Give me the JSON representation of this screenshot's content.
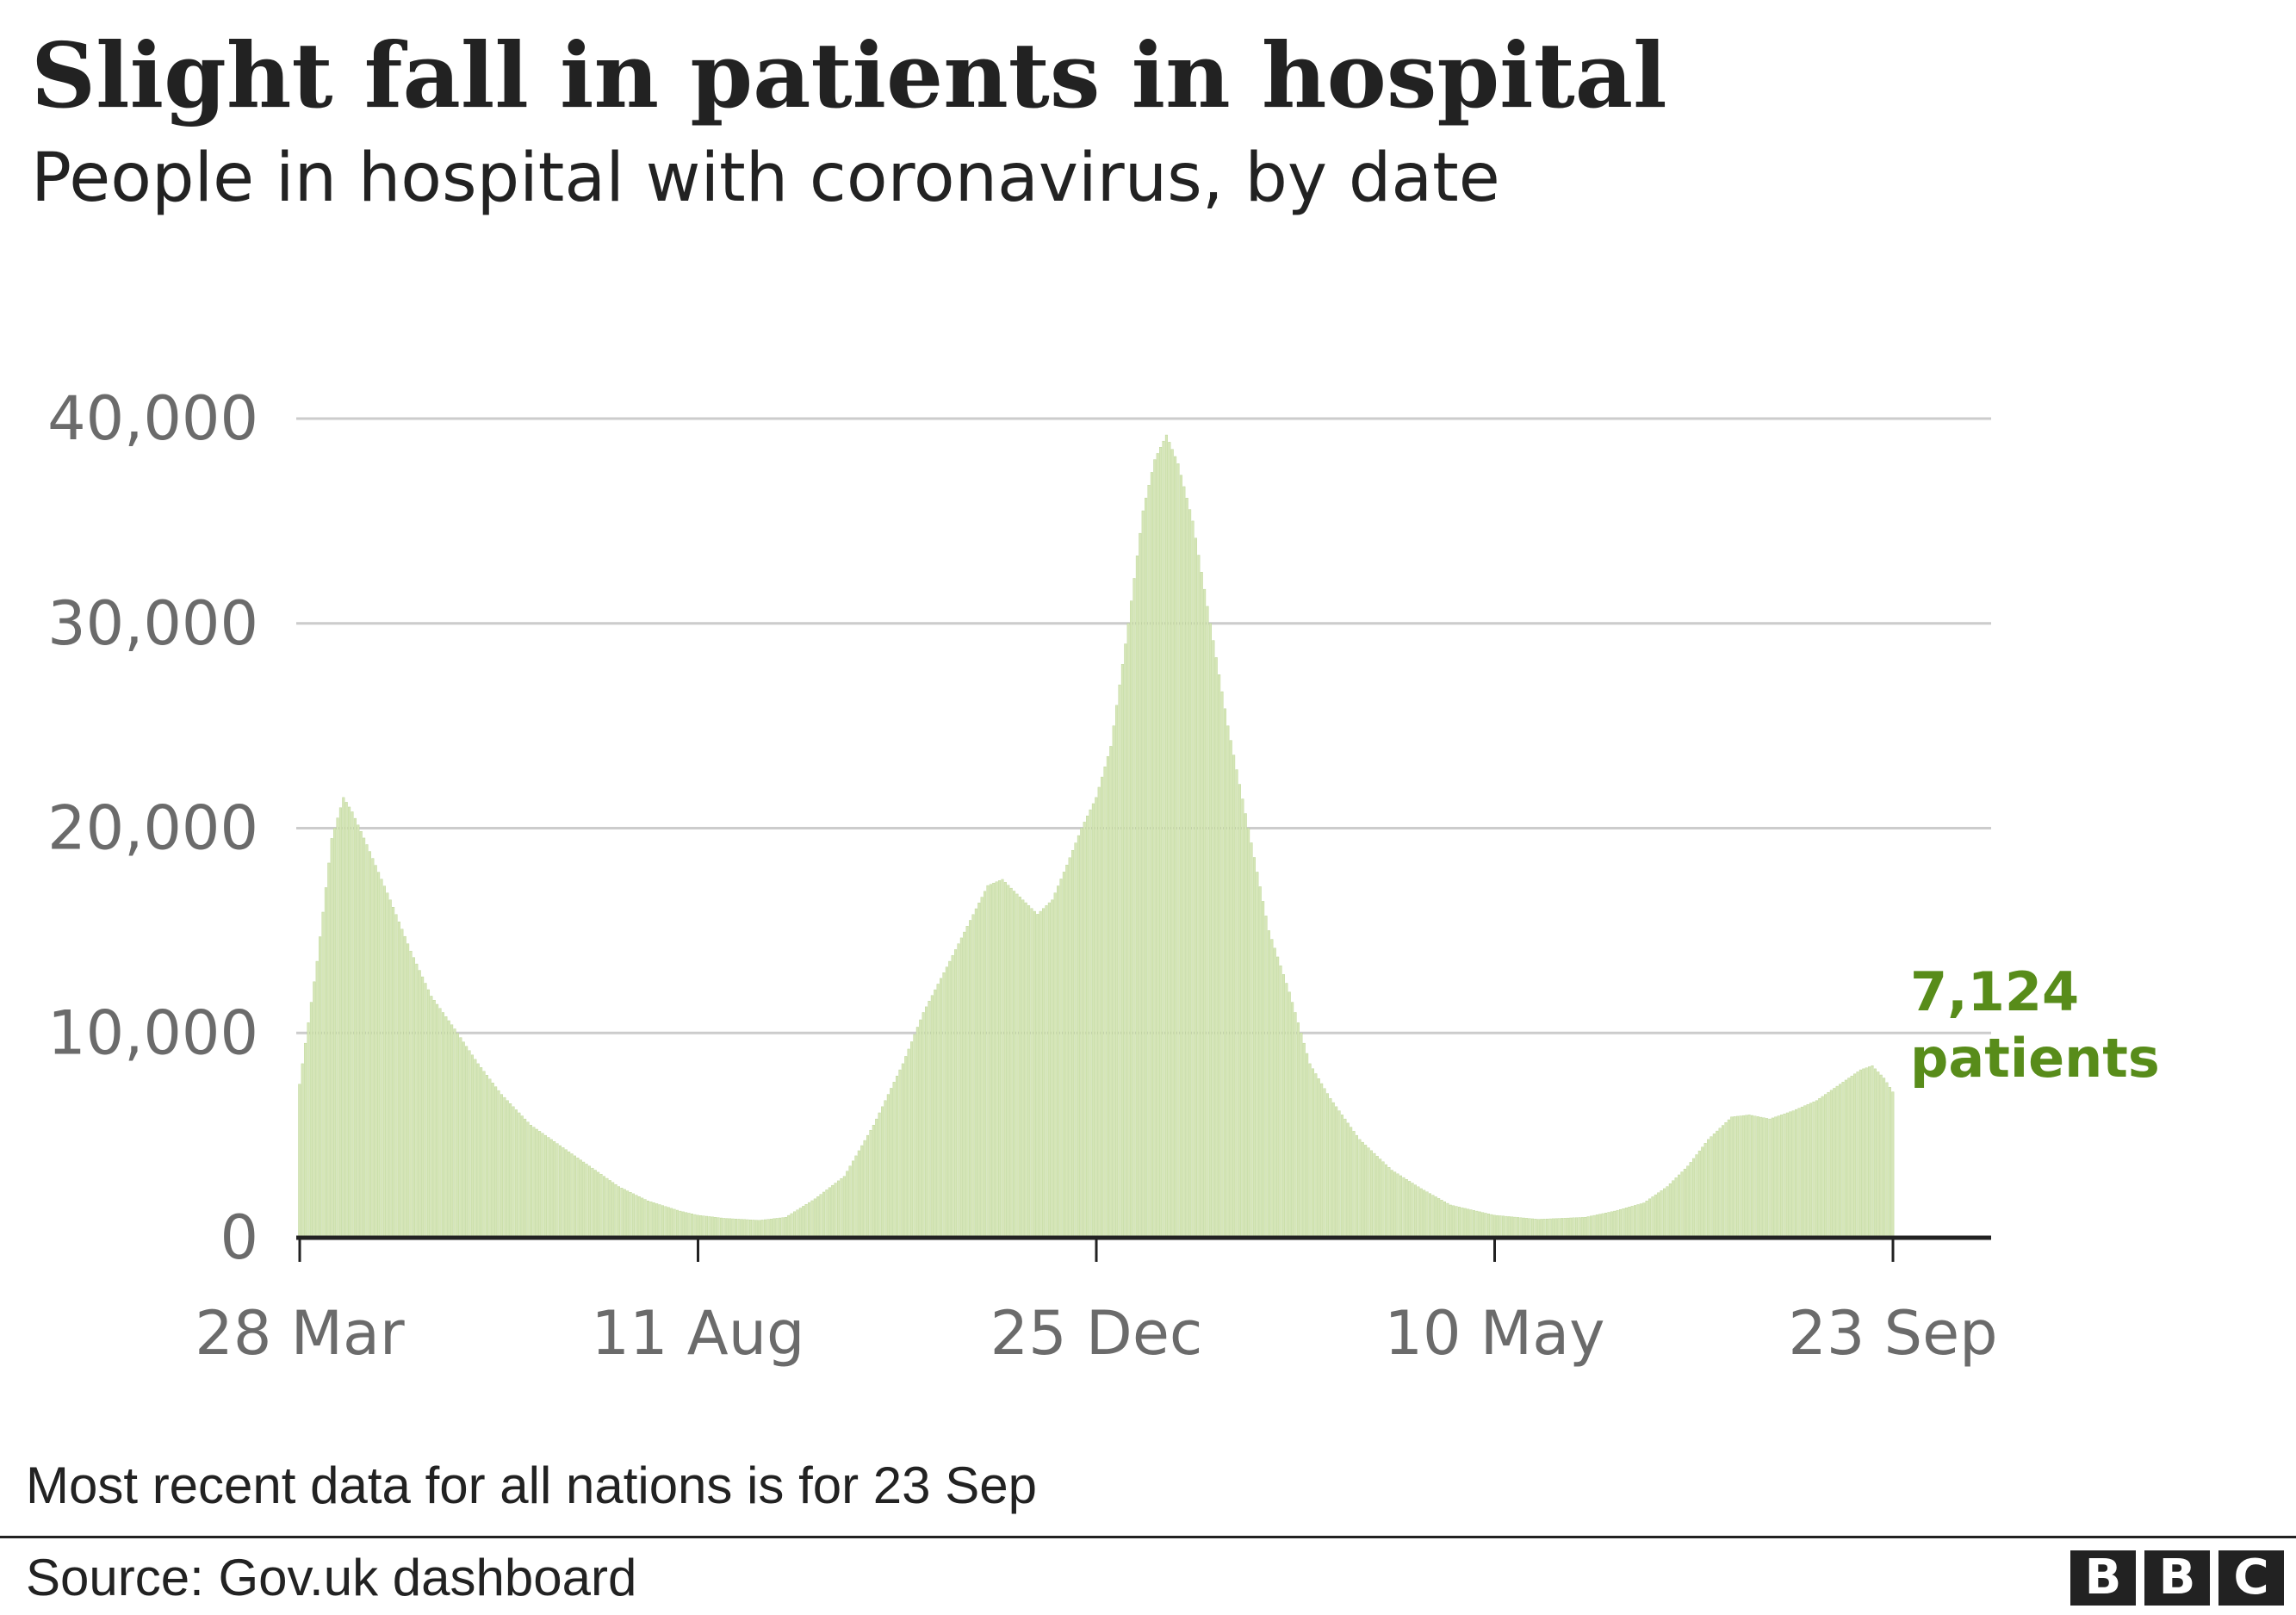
{
  "header": {
    "title": "Slight fall in patients in hospital",
    "subtitle": "People in hospital with coronavirus, by date"
  },
  "footer": {
    "note": "Most recent data for all nations is for 23 Sep",
    "source": "Source: Gov.uk dashboard",
    "logo_letters": [
      "B",
      "B",
      "C"
    ]
  },
  "colors": {
    "bar": "#d6e6b8",
    "bar_edge": "#b8d392",
    "grid": "#cccccc",
    "axis": "#222222",
    "annotation": "#588c1a"
  },
  "chart_data": {
    "type": "bar",
    "x_start": "2020-03-28",
    "x_end": "2021-09-23",
    "x_ticks": [
      {
        "label": "28 Mar",
        "date": "2020-03-28"
      },
      {
        "label": "11 Aug",
        "date": "2020-08-11"
      },
      {
        "label": "25 Dec",
        "date": "2020-12-25"
      },
      {
        "label": "10 May",
        "date": "2021-05-10"
      },
      {
        "label": "23 Sep",
        "date": "2021-09-23"
      }
    ],
    "y_ticks": [
      0,
      10000,
      20000,
      30000,
      40000
    ],
    "y_tick_labels": [
      "0",
      "10,000",
      "20,000",
      "30,000",
      "40,000"
    ],
    "ylim": [
      0,
      40000
    ],
    "grid": true,
    "series": [
      {
        "points": [
          [
            "2020-03-28",
            7500
          ],
          [
            "2020-04-03",
            13500
          ],
          [
            "2020-04-08",
            19500
          ],
          [
            "2020-04-12",
            21500
          ],
          [
            "2020-04-15",
            20800
          ],
          [
            "2020-04-20",
            19200
          ],
          [
            "2020-04-28",
            16500
          ],
          [
            "2020-05-05",
            14000
          ],
          [
            "2020-05-12",
            11800
          ],
          [
            "2020-05-20",
            10200
          ],
          [
            "2020-05-28",
            8500
          ],
          [
            "2020-06-05",
            7000
          ],
          [
            "2020-06-15",
            5500
          ],
          [
            "2020-06-25",
            4500
          ],
          [
            "2020-07-05",
            3500
          ],
          [
            "2020-07-15",
            2500
          ],
          [
            "2020-07-25",
            1800
          ],
          [
            "2020-08-05",
            1300
          ],
          [
            "2020-08-11",
            1100
          ],
          [
            "2020-08-20",
            950
          ],
          [
            "2020-09-01",
            850
          ],
          [
            "2020-09-10",
            1000
          ],
          [
            "2020-09-20",
            1900
          ],
          [
            "2020-09-30",
            3000
          ],
          [
            "2020-10-10",
            5500
          ],
          [
            "2020-10-20",
            8500
          ],
          [
            "2020-10-27",
            11000
          ],
          [
            "2020-11-05",
            13500
          ],
          [
            "2020-11-12",
            15500
          ],
          [
            "2020-11-18",
            17200
          ],
          [
            "2020-11-23",
            17500
          ],
          [
            "2020-11-30",
            16500
          ],
          [
            "2020-12-05",
            15800
          ],
          [
            "2020-12-10",
            16500
          ],
          [
            "2020-12-15",
            18200
          ],
          [
            "2020-12-20",
            20000
          ],
          [
            "2020-12-25",
            21500
          ],
          [
            "2020-12-30",
            24000
          ],
          [
            "2021-01-05",
            30000
          ],
          [
            "2021-01-10",
            35500
          ],
          [
            "2021-01-14",
            38000
          ],
          [
            "2021-01-18",
            39200
          ],
          [
            "2021-01-22",
            37800
          ],
          [
            "2021-01-27",
            35000
          ],
          [
            "2021-02-02",
            30000
          ],
          [
            "2021-02-08",
            25000
          ],
          [
            "2021-02-15",
            20000
          ],
          [
            "2021-02-22",
            15000
          ],
          [
            "2021-03-01",
            12000
          ],
          [
            "2021-03-08",
            8500
          ],
          [
            "2021-03-15",
            6800
          ],
          [
            "2021-03-25",
            4800
          ],
          [
            "2021-04-05",
            3300
          ],
          [
            "2021-04-15",
            2400
          ],
          [
            "2021-04-25",
            1600
          ],
          [
            "2021-05-10",
            1100
          ],
          [
            "2021-05-25",
            900
          ],
          [
            "2021-06-10",
            1000
          ],
          [
            "2021-06-20",
            1300
          ],
          [
            "2021-06-30",
            1700
          ],
          [
            "2021-07-08",
            2500
          ],
          [
            "2021-07-15",
            3500
          ],
          [
            "2021-07-22",
            4800
          ],
          [
            "2021-07-30",
            5900
          ],
          [
            "2021-08-05",
            6000
          ],
          [
            "2021-08-12",
            5800
          ],
          [
            "2021-08-20",
            6200
          ],
          [
            "2021-08-28",
            6700
          ],
          [
            "2021-09-05",
            7500
          ],
          [
            "2021-09-12",
            8200
          ],
          [
            "2021-09-16",
            8400
          ],
          [
            "2021-09-20",
            7800
          ],
          [
            "2021-09-23",
            7124
          ]
        ]
      }
    ],
    "annotation": {
      "value": "7,124",
      "label": "patients"
    }
  }
}
